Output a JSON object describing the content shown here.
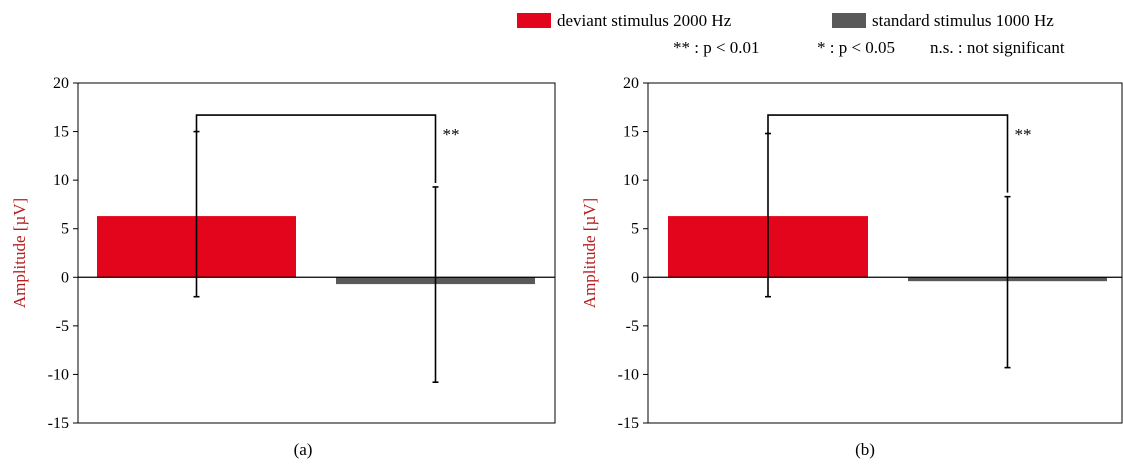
{
  "legend": {
    "items": [
      {
        "label": "deviant stimulus 2000 Hz",
        "color": "#e3051b"
      },
      {
        "label": "standard stimulus 1000 Hz",
        "color": "#595959"
      }
    ],
    "significance": [
      {
        "label": "** : p < 0.01"
      },
      {
        "label": "* : p < 0.05"
      },
      {
        "label": "n.s. : not significant"
      }
    ]
  },
  "chart_data": [
    {
      "type": "bar",
      "panel_label": "(a)",
      "ylabel": "Amplitude [µV]",
      "ylim": [
        -15,
        20
      ],
      "yticks": [
        20,
        15,
        10,
        5,
        0,
        -5,
        -10,
        -15
      ],
      "grid": false,
      "series": [
        {
          "name": "deviant stimulus 2000 Hz",
          "color": "#e3051b",
          "value": 6.3,
          "error_low": -2.0,
          "error_high": 15.0
        },
        {
          "name": "standard stimulus 1000 Hz",
          "color": "#595959",
          "value": -0.7,
          "error_low": -10.8,
          "error_high": 9.3
        }
      ],
      "significance": {
        "label": "**",
        "bracket_y": 16.7
      }
    },
    {
      "type": "bar",
      "panel_label": "(b)",
      "ylabel": "Amplitude [µV]",
      "ylim": [
        -15,
        20
      ],
      "yticks": [
        20,
        15,
        10,
        5,
        0,
        -5,
        -10,
        -15
      ],
      "grid": false,
      "series": [
        {
          "name": "deviant stimulus 2000 Hz",
          "color": "#e3051b",
          "value": 6.3,
          "error_low": -2.0,
          "error_high": 14.8
        },
        {
          "name": "standard stimulus 1000 Hz",
          "color": "#595959",
          "value": -0.4,
          "error_low": -9.3,
          "error_high": 8.3
        }
      ],
      "significance": {
        "label": "**",
        "bracket_y": 16.7
      }
    }
  ]
}
